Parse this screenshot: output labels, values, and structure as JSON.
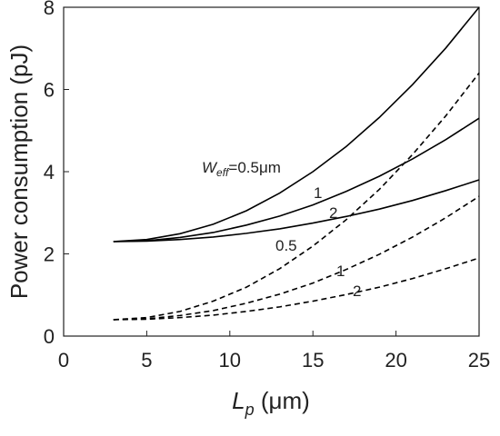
{
  "chart_data": {
    "type": "line",
    "x": [
      3,
      5,
      7,
      9,
      11,
      13,
      15,
      17,
      19,
      21,
      23,
      25
    ],
    "series": [
      {
        "color": "#000000",
        "dash": false,
        "values": [
          2.3,
          2.35,
          2.49,
          2.72,
          3.05,
          3.48,
          4.0,
          4.61,
          5.32,
          6.12,
          7.01,
          8.0
        ]
      },
      {
        "color": "#000000",
        "dash": false,
        "values": [
          2.3,
          2.32,
          2.4,
          2.52,
          2.7,
          2.92,
          3.19,
          3.52,
          3.89,
          4.31,
          4.78,
          5.3
        ]
      },
      {
        "color": "#000000",
        "dash": false,
        "values": [
          2.3,
          2.31,
          2.35,
          2.41,
          2.5,
          2.61,
          2.75,
          2.91,
          3.09,
          3.3,
          3.54,
          3.8
        ]
      },
      {
        "color": "#000000",
        "dash": true,
        "values": [
          0.4,
          0.45,
          0.6,
          0.85,
          1.19,
          1.64,
          2.19,
          2.83,
          3.57,
          4.42,
          5.36,
          6.4
        ]
      },
      {
        "color": "#000000",
        "dash": true,
        "values": [
          0.4,
          0.42,
          0.5,
          0.62,
          0.8,
          1.02,
          1.29,
          1.62,
          1.99,
          2.41,
          2.88,
          3.4
        ]
      },
      {
        "color": "#000000",
        "dash": true,
        "values": [
          0.4,
          0.41,
          0.45,
          0.51,
          0.6,
          0.71,
          0.85,
          1.01,
          1.19,
          1.4,
          1.64,
          1.9
        ]
      }
    ],
    "annotations": [
      {
        "text": "W",
        "sub": "eff",
        "rest": "=0.5μm"
      },
      {
        "text": "1"
      },
      {
        "text": "2"
      },
      {
        "text": "0.5"
      },
      {
        "text": "1"
      },
      {
        "text": "2"
      }
    ],
    "x_label": {
      "text": "L",
      "sub": "p",
      "rest": " (μm)"
    },
    "y_label": "Power consumption (pJ)",
    "xlim": [
      0,
      25
    ],
    "xticks": [
      0,
      5,
      10,
      15,
      20,
      25
    ],
    "ylim": [
      0,
      8
    ],
    "yticks": [
      0,
      2,
      4,
      6,
      8
    ]
  }
}
